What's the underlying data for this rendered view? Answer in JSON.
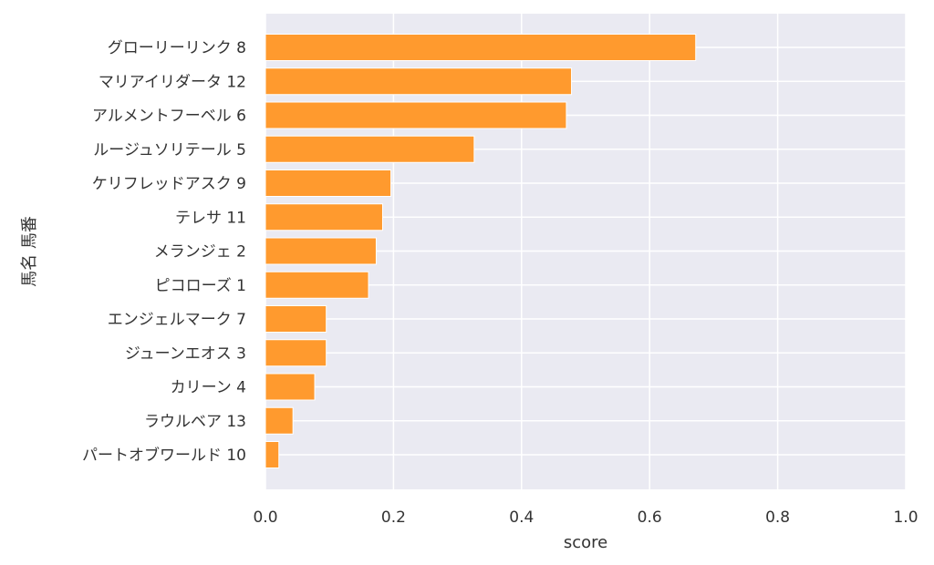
{
  "chart_data": {
    "type": "bar",
    "orientation": "horizontal",
    "title": "",
    "xlabel": "score",
    "ylabel": "馬名 馬番",
    "xlim": [
      0.0,
      1.0
    ],
    "xticks": [
      "0.0",
      "0.2",
      "0.4",
      "0.6",
      "0.8",
      "1.0"
    ],
    "grid": true,
    "categories": [
      "グローリーリンク 8",
      "マリアイリダータ 12",
      "アルメントフーベル 6",
      "ルージュソリテール 5",
      "ケリフレッドアスク 9",
      "テレサ 11",
      "メランジェ 2",
      "ピコローズ 1",
      "エンジェルマーク 7",
      "ジューンエオス 3",
      "カリーン 4",
      "ラウルベア 13",
      "パートオブワールド 10"
    ],
    "values": [
      0.672,
      0.478,
      0.47,
      0.326,
      0.196,
      0.183,
      0.173,
      0.161,
      0.095,
      0.095,
      0.077,
      0.043,
      0.021
    ],
    "colors": {
      "bar": "#ff9a2e",
      "plot_bg": "#eaeaf2",
      "grid": "#ffffff",
      "text": "#333333"
    }
  }
}
